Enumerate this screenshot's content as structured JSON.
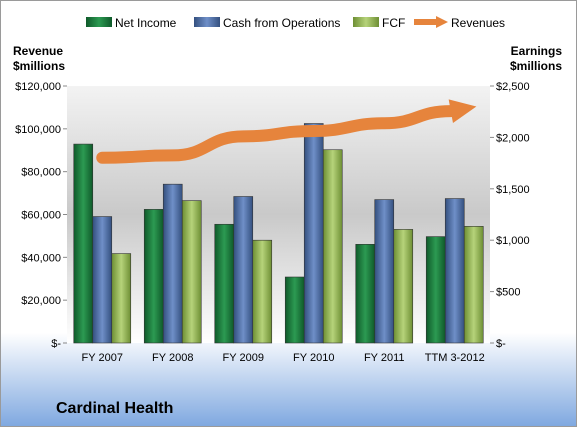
{
  "chart_data": {
    "type": "bar",
    "title": "Cardinal Health",
    "categories": [
      "FY 2007",
      "FY 2008",
      "FY 2009",
      "FY 2010",
      "FY 2011",
      "TTM 3-2012"
    ],
    "left_axis": {
      "label_line1": "Revenue",
      "label_line2": "$millions",
      "ylim": [
        0,
        120000
      ],
      "ticks": [
        0,
        20000,
        40000,
        60000,
        80000,
        100000,
        120000
      ],
      "tick_labels": [
        "$-",
        "$20,000",
        "$40,000",
        "$60,000",
        "$80,000",
        "$100,000",
        "$120,000"
      ]
    },
    "right_axis": {
      "label_line1": "Earnings",
      "label_line2": "$millions",
      "ylim": [
        0,
        2500
      ],
      "ticks": [
        0,
        500,
        1000,
        1500,
        2000,
        2500
      ],
      "tick_labels": [
        "$-",
        "$500",
        "$1,000",
        "$1,500",
        "$2,000",
        "$2,500"
      ]
    },
    "series": [
      {
        "name": "Net Income",
        "axis": "right",
        "kind": "bar",
        "color": "#1f7a3f",
        "values": [
          1935,
          1300,
          1155,
          642,
          960,
          1035
        ]
      },
      {
        "name": "Cash from Operations",
        "axis": "right",
        "kind": "bar",
        "color": "#4f6fa8",
        "values": [
          1230,
          1545,
          1425,
          2135,
          1395,
          1405
        ]
      },
      {
        "name": "FCF",
        "axis": "right",
        "kind": "bar",
        "color": "#9bbb59",
        "values": [
          870,
          1385,
          1000,
          1880,
          1105,
          1135
        ]
      },
      {
        "name": "Revenues",
        "axis": "left",
        "kind": "arrow-line",
        "color": "#e6843c",
        "values": [
          86500,
          87600,
          96500,
          99000,
          102600,
          108600
        ]
      }
    ],
    "legend_position": "top",
    "grid": false
  }
}
